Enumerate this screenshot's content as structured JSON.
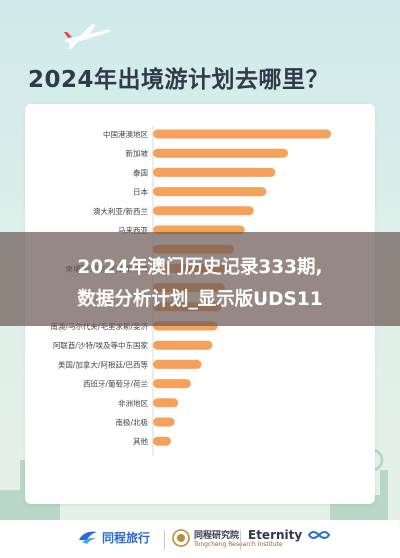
{
  "page_title": "2024年出境游计划去哪里？",
  "banner": {
    "line1": "2024年澳门历史记录333期,",
    "line2": "数据分析计划_显示版UDS11"
  },
  "colors": {
    "bar": "#f5a15a",
    "title": "#2f3b4a",
    "banner_bg": "#6e5a55"
  },
  "chart_data": {
    "type": "bar",
    "orientation": "horizontal",
    "title": "2024年出境游计划去哪里？",
    "xlabel": "",
    "ylabel": "",
    "xlim": [
      0,
      100
    ],
    "categories": [
      "中国港澳地区",
      "新加坡",
      "泰国",
      "日本",
      "澳大利亚/新西兰",
      "马来西亚",
      "",
      "柬埔寨/越南/老挝/菲律宾",
      "",
      "",
      "南澳/马尔代夫/毛里求斯/斐济",
      "阿联酋/沙特/埃及等中东国家",
      "美国/加拿大/阿根廷/巴西等",
      "西班牙/葡萄牙/荷兰",
      "非洲地区",
      "南极/北极",
      "其他"
    ],
    "values": [
      99,
      75,
      68,
      63,
      56,
      51,
      45,
      42,
      40,
      38,
      36,
      33,
      27,
      21,
      14,
      12,
      10
    ],
    "visible_labels": [
      true,
      true,
      true,
      true,
      true,
      true,
      false,
      true,
      false,
      false,
      true,
      true,
      true,
      true,
      true,
      true,
      true
    ]
  },
  "footer": {
    "logos": [
      {
        "name": "tongcheng",
        "text": "同程旅行",
        "icon": "tongcheng-icon"
      },
      {
        "name": "yanjiu",
        "text": "同程研究院",
        "sub": "Tongcheng Research Institute",
        "icon": "research-seal-icon"
      },
      {
        "name": "eternity",
        "text": "Eternity",
        "icon": "eternity-icon"
      }
    ]
  }
}
